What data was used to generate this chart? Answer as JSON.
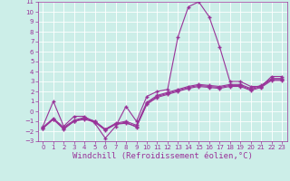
{
  "title": "",
  "xlabel": "Windchill (Refroidissement éolien,°C)",
  "ylabel": "",
  "xlim": [
    -0.5,
    23.5
  ],
  "ylim": [
    -3,
    11
  ],
  "xticks": [
    0,
    1,
    2,
    3,
    4,
    5,
    6,
    7,
    8,
    9,
    10,
    11,
    12,
    13,
    14,
    15,
    16,
    17,
    18,
    19,
    20,
    21,
    22,
    23
  ],
  "yticks": [
    -3,
    -2,
    -1,
    0,
    1,
    2,
    3,
    4,
    5,
    6,
    7,
    8,
    9,
    10,
    11
  ],
  "bg_color": "#cceee8",
  "grid_color": "#ffffff",
  "line_color": "#993399",
  "line1_y": [
    -1.5,
    1.0,
    -1.5,
    -0.5,
    -0.5,
    -1.2,
    -2.7,
    -1.5,
    0.5,
    -1.0,
    1.5,
    2.0,
    2.2,
    7.5,
    10.5,
    11.0,
    9.5,
    6.5,
    3.0,
    3.0,
    2.5,
    2.5,
    3.5,
    3.5
  ],
  "line2_y": [
    -1.7,
    -0.8,
    -1.7,
    -1.0,
    -0.7,
    -1.0,
    -1.8,
    -1.3,
    -1.2,
    -1.5,
    0.8,
    1.5,
    1.8,
    2.1,
    2.4,
    2.6,
    2.5,
    2.4,
    2.6,
    2.6,
    2.2,
    2.5,
    3.2,
    3.2
  ],
  "line3_y": [
    -1.7,
    -0.8,
    -1.8,
    -1.0,
    -0.8,
    -1.1,
    -1.9,
    -1.3,
    -1.1,
    -1.6,
    0.7,
    1.4,
    1.7,
    2.0,
    2.3,
    2.5,
    2.4,
    2.3,
    2.5,
    2.5,
    2.1,
    2.4,
    3.1,
    3.1
  ],
  "line4_y": [
    -1.6,
    -0.7,
    -1.6,
    -0.9,
    -0.6,
    -1.0,
    -1.8,
    -1.2,
    -1.0,
    -1.4,
    0.9,
    1.6,
    1.9,
    2.2,
    2.5,
    2.7,
    2.6,
    2.5,
    2.7,
    2.7,
    2.3,
    2.6,
    3.3,
    3.3
  ],
  "marker": "+",
  "markersize": 3,
  "linewidth": 0.8,
  "tick_fontsize": 5,
  "xlabel_fontsize": 6.5,
  "spine_color": "#993399"
}
